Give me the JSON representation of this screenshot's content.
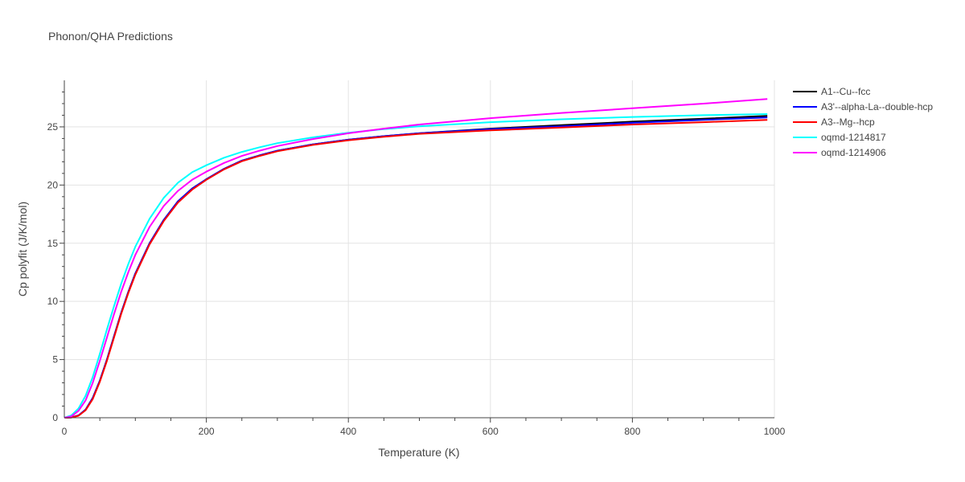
{
  "chart_data": {
    "type": "line",
    "title": "Phonon/QHA Predictions",
    "xlabel": "Temperature (K)",
    "ylabel": "Cp polyfit (J/K/mol)",
    "xlim": [
      0,
      1000
    ],
    "ylim": [
      0,
      29
    ],
    "xticks": [
      0,
      200,
      400,
      600,
      800,
      1000
    ],
    "yticks": [
      0,
      5,
      10,
      15,
      20,
      25
    ],
    "grid": true,
    "legend_position": "top-right-outside",
    "x": [
      0,
      10,
      20,
      30,
      40,
      50,
      60,
      70,
      80,
      90,
      100,
      120,
      140,
      160,
      180,
      200,
      225,
      250,
      275,
      300,
      350,
      400,
      450,
      500,
      600,
      700,
      800,
      900,
      990
    ],
    "series": [
      {
        "name": "A1--Cu--fcc",
        "color": "#000000",
        "values": [
          0,
          0.03,
          0.2,
          0.7,
          1.7,
          3.2,
          5.0,
          7.0,
          9.0,
          10.8,
          12.4,
          15.0,
          17.0,
          18.6,
          19.7,
          20.5,
          21.4,
          22.1,
          22.55,
          22.95,
          23.5,
          23.9,
          24.2,
          24.45,
          24.85,
          25.15,
          25.45,
          25.7,
          25.95
        ]
      },
      {
        "name": "A3'--alpha-La--double-hcp",
        "color": "#0000ff",
        "values": [
          0,
          0.03,
          0.2,
          0.7,
          1.7,
          3.2,
          5.0,
          7.0,
          9.0,
          10.8,
          12.4,
          15.0,
          17.0,
          18.6,
          19.7,
          20.5,
          21.4,
          22.1,
          22.55,
          22.95,
          23.5,
          23.9,
          24.2,
          24.45,
          24.8,
          25.05,
          25.35,
          25.6,
          25.8
        ]
      },
      {
        "name": "A3--Mg--hcp",
        "color": "#ff0000",
        "values": [
          0,
          0.02,
          0.17,
          0.65,
          1.6,
          3.1,
          4.9,
          6.9,
          8.9,
          10.7,
          12.3,
          14.9,
          16.9,
          18.5,
          19.6,
          20.45,
          21.35,
          22.05,
          22.5,
          22.9,
          23.45,
          23.85,
          24.15,
          24.4,
          24.7,
          24.95,
          25.2,
          25.4,
          25.6
        ]
      },
      {
        "name": "oqmd-1214817",
        "color": "#00ffff",
        "values": [
          0,
          0.2,
          0.8,
          1.9,
          3.5,
          5.5,
          7.6,
          9.6,
          11.5,
          13.2,
          14.7,
          17.1,
          18.9,
          20.2,
          21.1,
          21.7,
          22.35,
          22.85,
          23.25,
          23.6,
          24.1,
          24.5,
          24.8,
          25.05,
          25.4,
          25.65,
          25.85,
          26.0,
          26.1
        ]
      },
      {
        "name": "oqmd-1214906",
        "color": "#ff00ff",
        "values": [
          0,
          0.12,
          0.6,
          1.5,
          3.0,
          4.9,
          6.9,
          8.9,
          10.8,
          12.5,
          14.0,
          16.4,
          18.2,
          19.5,
          20.45,
          21.15,
          21.9,
          22.5,
          22.95,
          23.35,
          23.95,
          24.45,
          24.85,
          25.2,
          25.75,
          26.2,
          26.6,
          27.0,
          27.4
        ]
      }
    ]
  }
}
